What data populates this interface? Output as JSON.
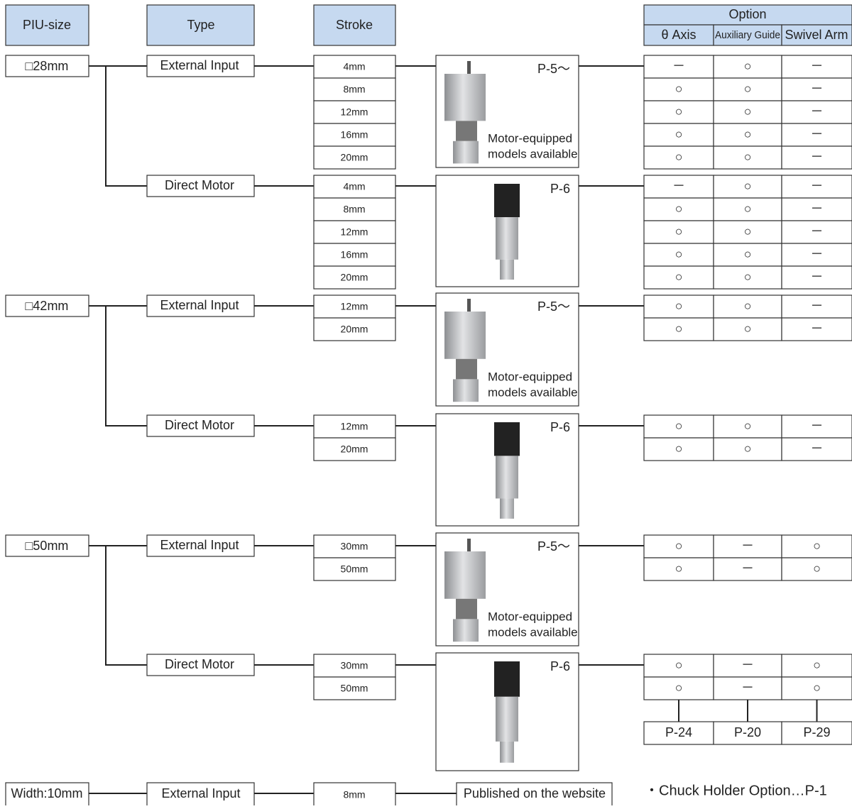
{
  "header": {
    "piu_size": "PIU-size",
    "type": "Type",
    "stroke": "Stroke",
    "option": "Option",
    "theta_axis": "θ Axis",
    "auxiliary_guide": "Auxiliary Guide",
    "swivel_arm": "Swivel Arm"
  },
  "sizes": [
    {
      "label": "□28mm",
      "types": [
        {
          "label": "External Input",
          "page": "P-5～",
          "note": [
            "Motor-equipped",
            "models available"
          ],
          "strokes": [
            "4mm",
            "8mm",
            "12mm",
            "16mm",
            "20mm"
          ],
          "options": [
            [
              "－",
              "○",
              "－"
            ],
            [
              "○",
              "○",
              "－"
            ],
            [
              "○",
              "○",
              "－"
            ],
            [
              "○",
              "○",
              "－"
            ],
            [
              "○",
              "○",
              "－"
            ]
          ]
        },
        {
          "label": "Direct Motor",
          "page": "P-6",
          "strokes": [
            "4mm",
            "8mm",
            "12mm",
            "16mm",
            "20mm"
          ],
          "options": [
            [
              "－",
              "○",
              "－"
            ],
            [
              "○",
              "○",
              "－"
            ],
            [
              "○",
              "○",
              "－"
            ],
            [
              "○",
              "○",
              "－"
            ],
            [
              "○",
              "○",
              "－"
            ]
          ]
        }
      ]
    },
    {
      "label": "□42mm",
      "types": [
        {
          "label": "External Input",
          "page": "P-5～",
          "note": [
            "Motor-equipped",
            "models available"
          ],
          "strokes": [
            "12mm",
            "20mm"
          ],
          "options": [
            [
              "○",
              "○",
              "－"
            ],
            [
              "○",
              "○",
              "－"
            ]
          ]
        },
        {
          "label": "Direct Motor",
          "page": "P-6",
          "strokes": [
            "12mm",
            "20mm"
          ],
          "options": [
            [
              "○",
              "○",
              "－"
            ],
            [
              "○",
              "○",
              "－"
            ]
          ]
        }
      ]
    },
    {
      "label": "□50mm",
      "types": [
        {
          "label": "External Input",
          "page": "P-5～",
          "note": [
            "Motor-equipped",
            "models available"
          ],
          "strokes": [
            "30mm",
            "50mm"
          ],
          "options": [
            [
              "○",
              "－",
              "○"
            ],
            [
              "○",
              "－",
              "○"
            ]
          ]
        },
        {
          "label": "Direct Motor",
          "page": "P-6",
          "strokes": [
            "30mm",
            "50mm"
          ],
          "options": [
            [
              "○",
              "－",
              "○"
            ],
            [
              "○",
              "－",
              "○"
            ]
          ]
        }
      ]
    }
  ],
  "option_pages": [
    "P-24",
    "P-20",
    "P-29"
  ],
  "width_row": {
    "size": "Width:10mm",
    "type": "External Input",
    "stroke": "8mm",
    "published": "Published on the website"
  },
  "footnote": "・Chuck Holder Option…P-1"
}
